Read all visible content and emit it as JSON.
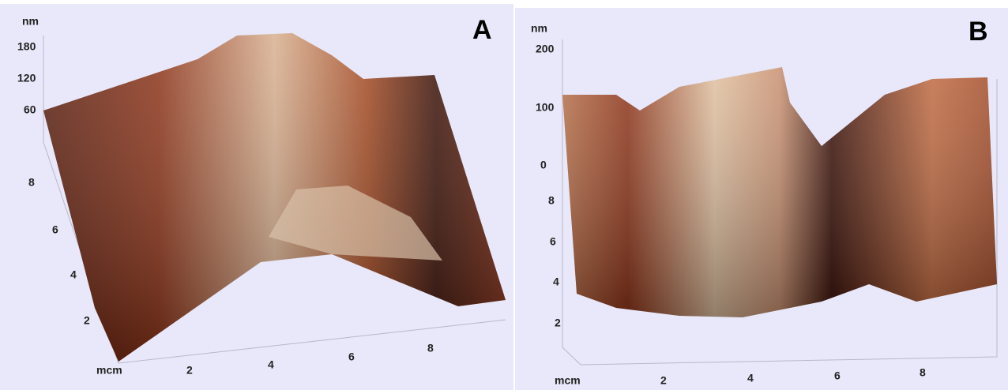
{
  "panels": [
    {
      "label": "A",
      "z_unit": "nm",
      "z_ticks": [
        "180",
        "120",
        "60"
      ],
      "y_ticks": [
        "8",
        "6",
        "4",
        "2"
      ],
      "x_unit": "mcm",
      "x_ticks": [
        "2",
        "4",
        "6",
        "8"
      ]
    },
    {
      "label": "B",
      "z_unit": "nm",
      "z_ticks": [
        "200",
        "100",
        "0"
      ],
      "y_ticks": [
        "8",
        "6",
        "4",
        "2"
      ],
      "x_unit": "mcm",
      "x_ticks": [
        "2",
        "4",
        "6",
        "8"
      ]
    }
  ]
}
